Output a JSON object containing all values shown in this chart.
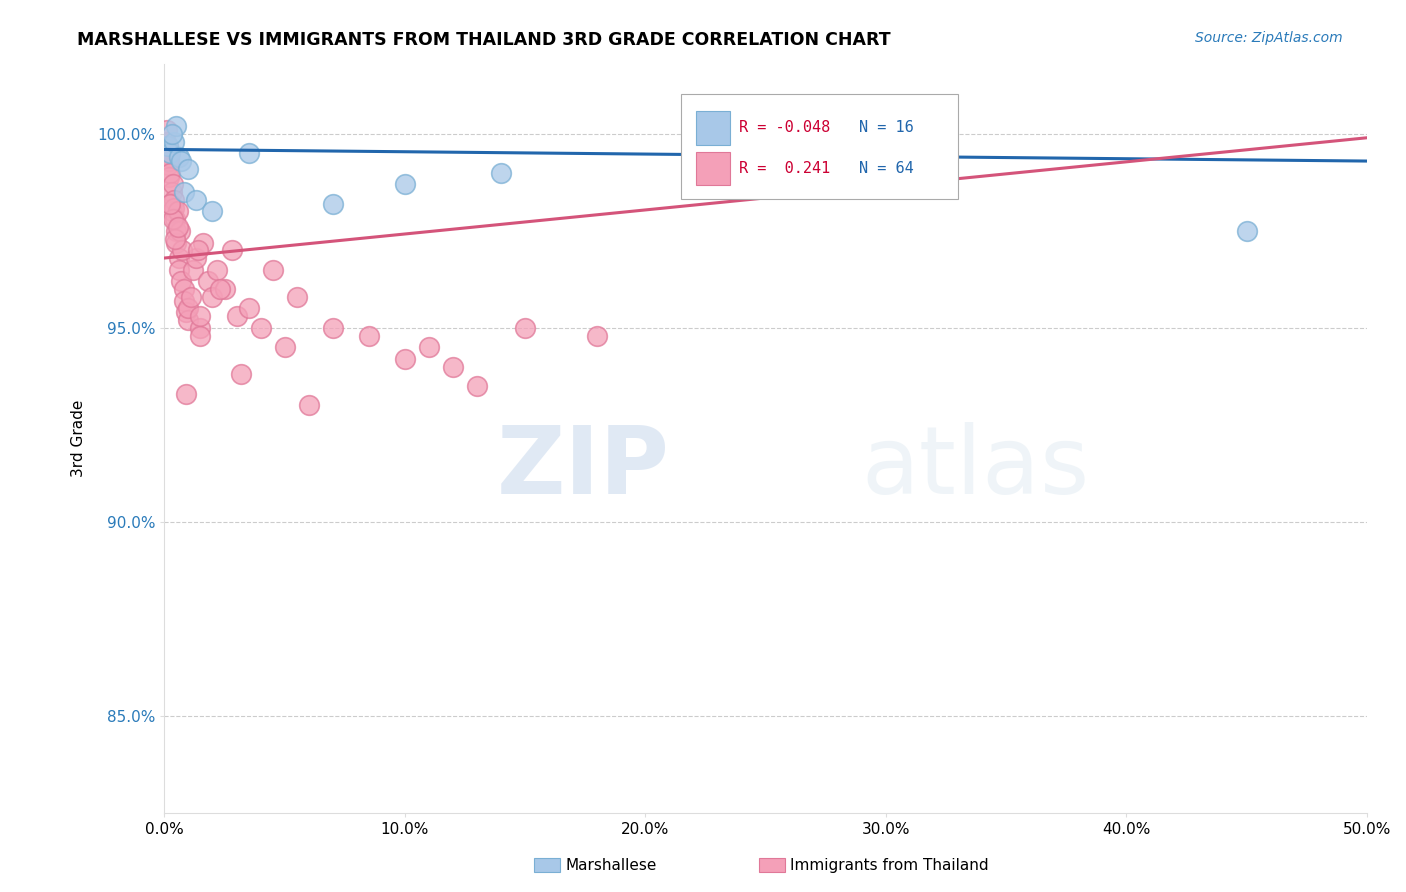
{
  "title": "MARSHALLESE VS IMMIGRANTS FROM THAILAND 3RD GRADE CORRELATION CHART",
  "source": "Source: ZipAtlas.com",
  "xlabel_vals": [
    0.0,
    10.0,
    20.0,
    30.0,
    40.0,
    50.0
  ],
  "ylabel_vals": [
    85.0,
    90.0,
    95.0,
    100.0
  ],
  "ylabel_label": "3rd Grade",
  "xlim": [
    0.0,
    50.0
  ],
  "ylim": [
    82.5,
    101.8
  ],
  "watermark_zip": "ZIP",
  "watermark_atlas": "atlas",
  "blue_color": "#a8c8e8",
  "blue_edge_color": "#7aafd4",
  "pink_color": "#f4a0b8",
  "pink_edge_color": "#e07898",
  "blue_line_color": "#2166ac",
  "pink_line_color": "#d4547a",
  "blue_line_y0": 99.6,
  "blue_line_y1": 99.3,
  "pink_line_y0": 96.8,
  "pink_line_y1": 99.9,
  "marshallese_x": [
    0.15,
    0.25,
    0.4,
    0.5,
    0.6,
    0.7,
    0.8,
    1.0,
    1.3,
    2.0,
    3.5,
    7.0,
    10.0,
    14.0,
    45.0,
    0.3
  ],
  "marshallese_y": [
    99.7,
    99.5,
    99.8,
    100.2,
    99.4,
    99.3,
    98.5,
    99.1,
    98.3,
    98.0,
    99.5,
    98.2,
    98.7,
    99.0,
    97.5,
    100.0
  ],
  "thailand_x": [
    0.05,
    0.08,
    0.1,
    0.12,
    0.15,
    0.15,
    0.18,
    0.2,
    0.2,
    0.25,
    0.3,
    0.3,
    0.35,
    0.4,
    0.4,
    0.45,
    0.5,
    0.5,
    0.6,
    0.6,
    0.7,
    0.8,
    0.8,
    0.9,
    1.0,
    1.0,
    1.1,
    1.2,
    1.5,
    1.5,
    1.5,
    1.8,
    2.0,
    2.2,
    2.5,
    3.0,
    3.5,
    4.0,
    5.0,
    5.5,
    7.0,
    8.5,
    10.0,
    12.0,
    13.0,
    15.0,
    18.0,
    3.2,
    6.0,
    1.3,
    1.6,
    2.8,
    4.5,
    0.55,
    0.65,
    0.75,
    0.35,
    0.45,
    0.55,
    0.25,
    1.4,
    2.3,
    11.0,
    0.9
  ],
  "thailand_y": [
    99.8,
    99.5,
    100.1,
    99.6,
    99.7,
    99.2,
    99.4,
    99.3,
    98.9,
    99.0,
    98.5,
    98.0,
    98.7,
    98.3,
    98.1,
    97.8,
    97.5,
    97.2,
    96.8,
    96.5,
    96.2,
    96.0,
    95.7,
    95.4,
    95.2,
    95.5,
    95.8,
    96.5,
    95.0,
    95.3,
    94.8,
    96.2,
    95.8,
    96.5,
    96.0,
    95.3,
    95.5,
    95.0,
    94.5,
    95.8,
    95.0,
    94.8,
    94.2,
    94.0,
    93.5,
    95.0,
    94.8,
    93.8,
    93.0,
    96.8,
    97.2,
    97.0,
    96.5,
    98.0,
    97.5,
    97.0,
    97.8,
    97.3,
    97.6,
    98.2,
    97.0,
    96.0,
    94.5,
    93.3
  ],
  "legend_r1": "R = -0.048",
  "legend_n1": "N = 16",
  "legend_r2": "R =  0.241",
  "legend_n2": "N = 64"
}
